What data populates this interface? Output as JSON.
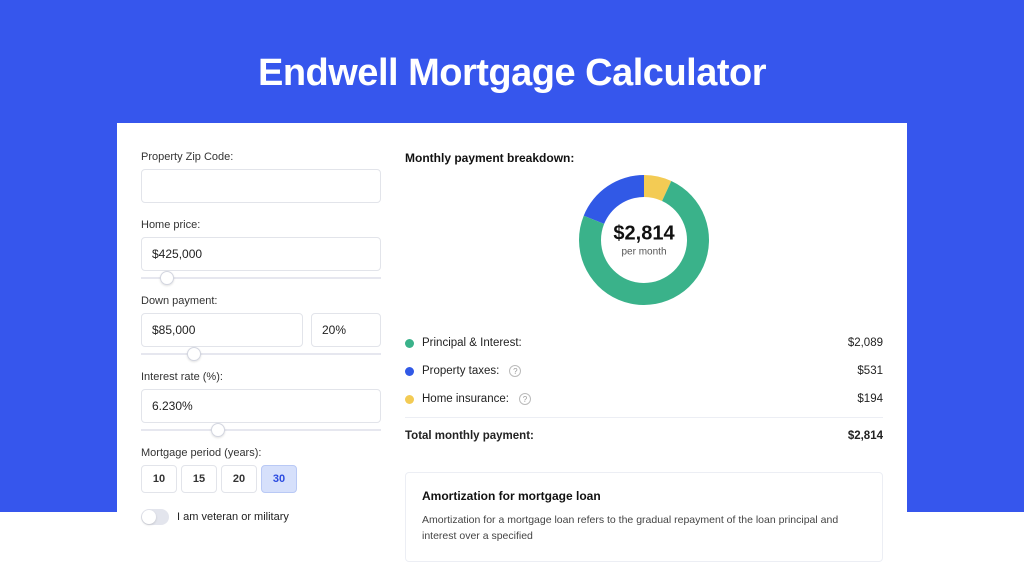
{
  "colors": {
    "hero_bg": "#3656ed",
    "card_bg": "#ffffff",
    "border": "#e2e4ea",
    "accent_green": "#3ab28a",
    "accent_blue": "#3159e6",
    "accent_yellow": "#f3cb54",
    "period_active_bg": "#d6e0fb",
    "period_active_fg": "#2b4be0"
  },
  "title": "Endwell Mortgage Calculator",
  "form": {
    "zip": {
      "label": "Property Zip Code:",
      "value": ""
    },
    "home_price": {
      "label": "Home price:",
      "value": "$425,000",
      "slider_pct": 8
    },
    "down_payment": {
      "label": "Down payment:",
      "value": "$85,000",
      "pct_value": "20%",
      "slider_pct": 19
    },
    "interest_rate": {
      "label": "Interest rate (%):",
      "value": "6.230%",
      "slider_pct": 29
    },
    "period": {
      "label": "Mortgage period (years):",
      "options": [
        "10",
        "15",
        "20",
        "30"
      ],
      "selected": "30"
    },
    "veteran": {
      "label": "I am veteran or military",
      "on": false
    }
  },
  "breakdown": {
    "title": "Monthly payment breakdown:",
    "donut": {
      "amount": "$2,814",
      "sub": "per month",
      "size": 130,
      "ring_width": 22,
      "segments": [
        {
          "label": "Principal & Interest:",
          "value": "$2,089",
          "pct": 74.2,
          "color": "#3ab28a",
          "info": false
        },
        {
          "label": "Property taxes:",
          "value": "$531",
          "pct": 18.9,
          "color": "#3159e6",
          "info": true
        },
        {
          "label": "Home insurance:",
          "value": "$194",
          "pct": 6.9,
          "color": "#f3cb54",
          "info": true
        }
      ]
    },
    "total": {
      "label": "Total monthly payment:",
      "value": "$2,814"
    }
  },
  "amort": {
    "title": "Amortization for mortgage loan",
    "text": "Amortization for a mortgage loan refers to the gradual repayment of the loan principal and interest over a specified"
  }
}
